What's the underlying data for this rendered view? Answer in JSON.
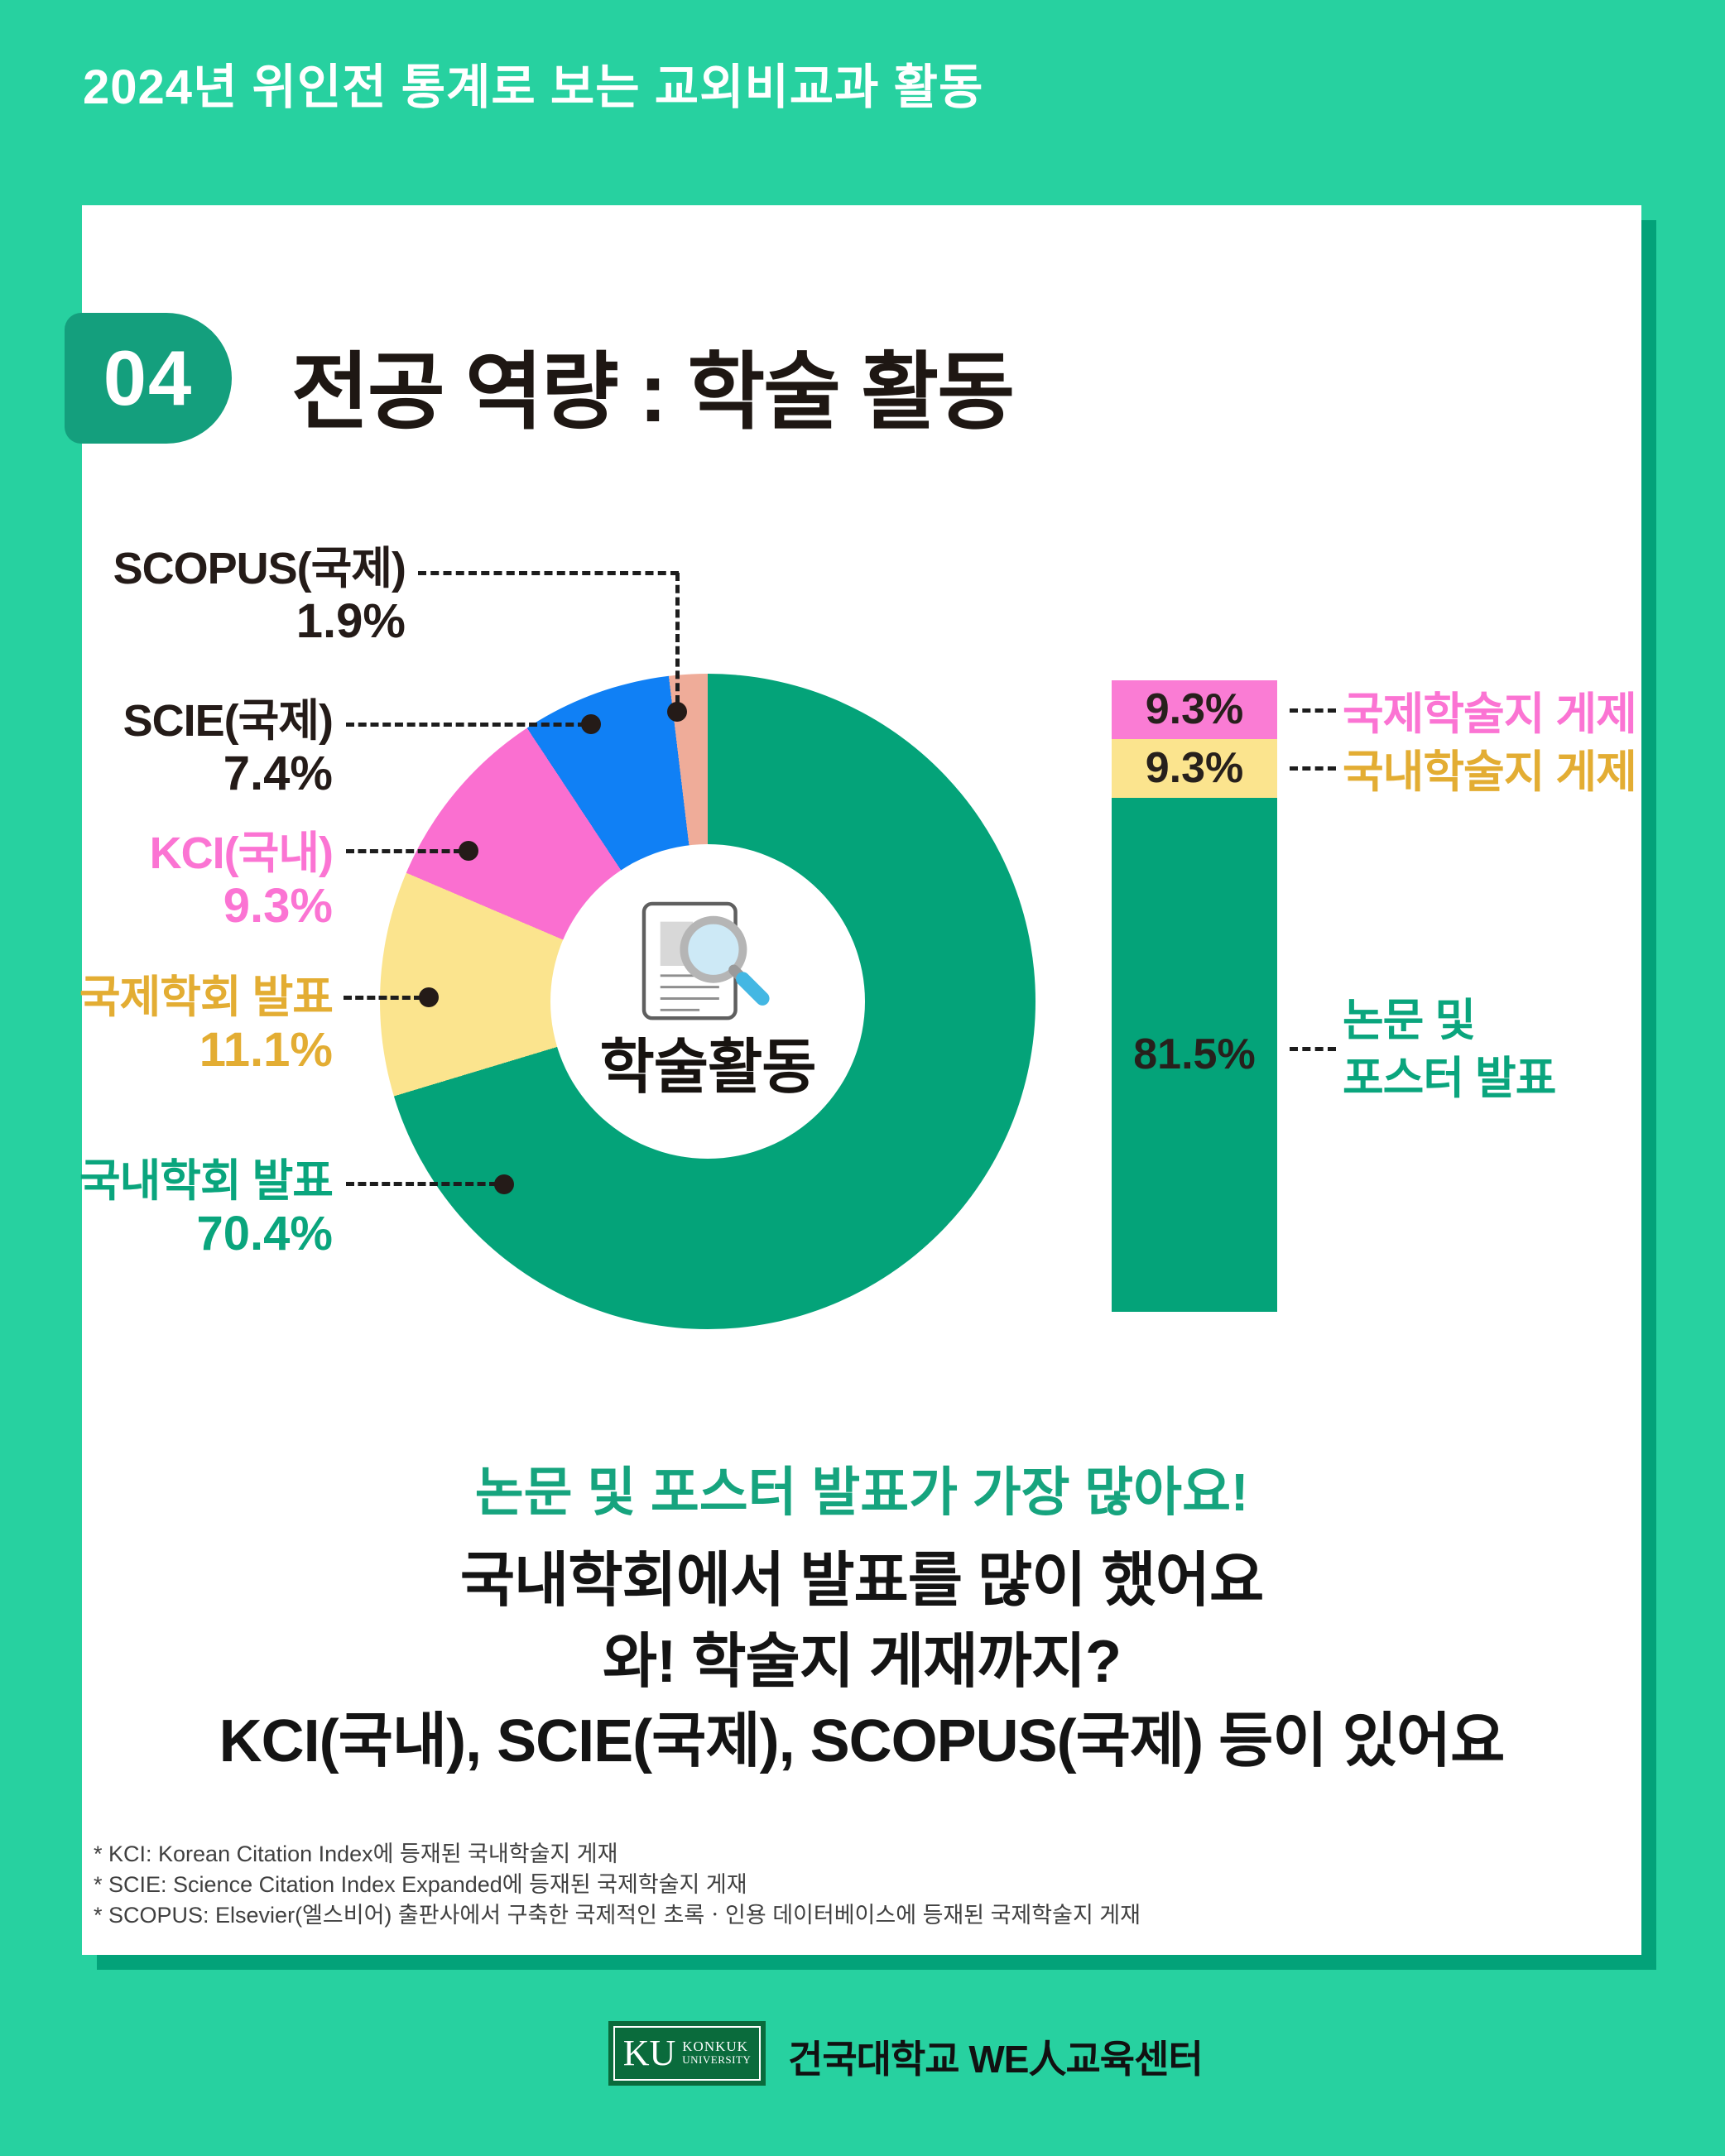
{
  "page": {
    "header": "2024년 위인전 통계로 보는 교외비교과 활동",
    "section_number": "04",
    "section_title": "전공 역량 : 학술 활동"
  },
  "colors": {
    "background": "#27d1a0",
    "card_shadow": "#03a279",
    "badge": "#149f7d",
    "dark_text": "#241b18",
    "pink": "#fa6fd0",
    "yellow": "#fbe48e",
    "blue": "#1080f5",
    "salmon": "#efac99",
    "green": "#04a379",
    "label_pink": "#fb74d3",
    "label_gold": "#e3ad33",
    "label_green": "#0aa57d",
    "highlight_green": "#16a47e"
  },
  "chart_data": [
    {
      "type": "pie",
      "subtype": "donut",
      "title": "학술활동",
      "unit": "%",
      "segments": [
        {
          "label": "국내학회 발표",
          "value": 70.4,
          "color": "#04a379"
        },
        {
          "label": "국제학회 발표",
          "value": 11.1,
          "color": "#fbe48e"
        },
        {
          "label": "KCI(국내)",
          "value": 9.3,
          "color": "#fa6fd0"
        },
        {
          "label": "SCIE(국제)",
          "value": 7.4,
          "color": "#1080f5"
        },
        {
          "label": "SCOPUS(국제)",
          "value": 1.9,
          "color": "#efac99"
        }
      ],
      "legend_position": "left",
      "center_label": "학술활동"
    },
    {
      "type": "bar",
      "subtype": "stacked-vertical",
      "unit": "%",
      "segments": [
        {
          "label": "국제학술지 게제",
          "value": 9.3,
          "color": "#fa7cd4"
        },
        {
          "label": "국내학술지 게제",
          "value": 9.3,
          "color": "#fbe48e"
        },
        {
          "label": "논문 및 포스터 발표",
          "value": 81.5,
          "color": "#04a379"
        }
      ],
      "legend_position": "right"
    }
  ],
  "donut_section": {
    "labels": [
      {
        "name": "SCOPUS(국제)",
        "pct": "1.9%",
        "color": "#241b18"
      },
      {
        "name": "SCIE(국제)",
        "pct": "7.4%",
        "color": "#241b18"
      },
      {
        "name": "KCI(국내)",
        "pct": "9.3%",
        "color": "#fb74d3"
      },
      {
        "name": "국제학회 발표",
        "pct": "11.1%",
        "color": "#e3ad33"
      },
      {
        "name": "국내학회 발표",
        "pct": "70.4%",
        "color": "#0aa57d"
      }
    ],
    "center_label": "학술활동",
    "center_icon": "document-magnifier-icon"
  },
  "bar_section": {
    "rows": [
      {
        "pct": "9.3%",
        "label": "국제학술지 게제",
        "color": "#fb74d3"
      },
      {
        "pct": "9.3%",
        "label": "국내학술지 게제",
        "color": "#e3ad33"
      },
      {
        "pct": "81.5%",
        "label_line1": "논문 및",
        "label_line2": "포스터 발표",
        "color": "#0aa57d"
      }
    ]
  },
  "summary": {
    "highlight": "논문 및 포스터 발표가 가장 많아요!",
    "line2": "국내학회에서 발표를 많이 했어요",
    "line3": "와! 학술지 게재까지?",
    "line4": "KCI(국내), SCIE(국제), SCOPUS(국제) 등이 있어요"
  },
  "footnotes": [
    "* KCI: Korean Citation Index에 등재된 국내학술지 게재",
    "* SCIE: Science Citation Index Expanded에 등재된 국제학술지 게재",
    "* SCOPUS: Elsevier(엘스비어) 출판사에서 구축한 국제적인 초록ㆍ인용 데이터베이스에 등재된 국제학술지 게재"
  ],
  "footer": {
    "logo": {
      "mark": "KU",
      "word1": "KONKUK",
      "word2": "UNIVERSITY"
    },
    "org_name": "건국대학교 WE人교육센터"
  }
}
